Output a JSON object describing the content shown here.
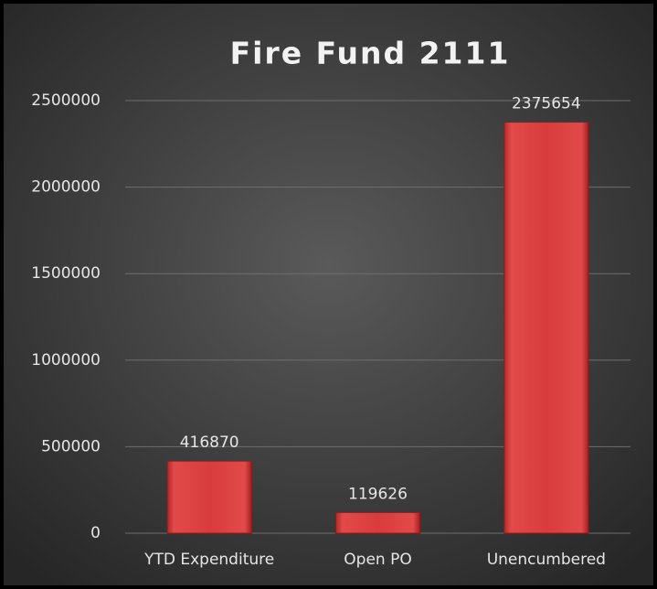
{
  "chart_data": {
    "type": "bar",
    "title": "Fire Fund 2111",
    "categories": [
      "YTD Expenditure",
      "Open PO",
      "Unencumbered"
    ],
    "values": [
      416870,
      119626,
      2375654
    ],
    "color": "#d63a3a",
    "ylim": [
      0,
      2500000
    ],
    "yticks": [
      0,
      500000,
      1000000,
      1500000,
      2000000,
      2500000
    ],
    "grid": true
  }
}
